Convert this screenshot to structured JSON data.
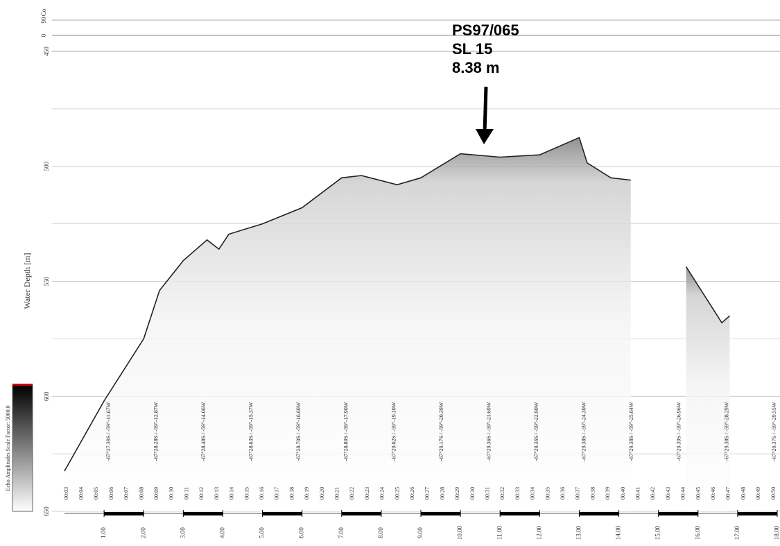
{
  "chart_data": {
    "type": "line",
    "y_label": "Water Depth [m]",
    "colorbar_label": "Echo Amplitudes   Scale Factor: 5000.0",
    "top_panel": {
      "label": "Co",
      "ticks": [
        "90",
        "0"
      ]
    },
    "annotation": [
      "PS97/065",
      "SL 15",
      "8.38 m"
    ],
    "x": [
      0,
      1,
      2,
      2.4,
      3,
      3.6,
      3.9,
      4.15,
      5,
      6,
      7,
      7.5,
      8.4,
      9,
      10,
      11,
      12,
      13,
      13.2,
      13.8,
      14.3,
      14.8,
      15.7,
      16.6,
      16.8
    ],
    "series": [
      {
        "color": "#222222",
        "values": [
          632.5,
          602,
          575,
          554,
          541,
          532,
          536,
          529.5,
          525,
          518,
          505,
          504,
          508,
          505,
          494.5,
          496,
          495,
          487.5,
          498.5,
          505,
          506,
          null,
          543.7,
          568,
          565
        ]
      }
    ],
    "xlim": [
      0,
      18
    ],
    "ylim": [
      450,
      650
    ],
    "xticks": [
      {
        "value": 1,
        "label": "1.00"
      },
      {
        "value": 2,
        "label": "2.00"
      },
      {
        "value": 3,
        "label": "3.00"
      },
      {
        "value": 4,
        "label": "4.00"
      },
      {
        "value": 5,
        "label": "5.00"
      },
      {
        "value": 6,
        "label": "6.00"
      },
      {
        "value": 7,
        "label": "7.00"
      },
      {
        "value": 8,
        "label": "8.00"
      },
      {
        "value": 9,
        "label": "9.00"
      },
      {
        "value": 10,
        "label": "10.00"
      },
      {
        "value": 11,
        "label": "11.00"
      },
      {
        "value": 12,
        "label": "12.00"
      },
      {
        "value": 13,
        "label": "13.00"
      },
      {
        "value": 14,
        "label": "14.00"
      },
      {
        "value": 15,
        "label": "15.00"
      },
      {
        "value": 16,
        "label": "16.00"
      },
      {
        "value": 17,
        "label": "17.00"
      },
      {
        "value": 18,
        "label": "18.00"
      }
    ],
    "yticks": [
      450,
      500,
      550,
      600,
      650
    ],
    "times": [
      "00:03",
      "00:04",
      "00:05",
      "00:06",
      "00:07",
      "00:08",
      "00:09",
      "00:10",
      "00:11",
      "00:12",
      "00:13",
      "00:14",
      "00:15",
      "00:16",
      "00:17",
      "00:18",
      "00:19",
      "00:20",
      "00:21",
      "00:22",
      "00:23",
      "00:24",
      "00:25",
      "00:26",
      "00:27",
      "00:28",
      "00:29",
      "00:30",
      "00:31",
      "00:32",
      "00:33",
      "00:34",
      "00:35",
      "00:36",
      "00:37",
      "00:38",
      "00:39",
      "00:40",
      "00:41",
      "00:42",
      "00:43",
      "00:44",
      "00:45",
      "00:46",
      "00:47",
      "00:48",
      "00:49",
      "00:50"
    ],
    "positions": [
      "-67°27.39S / -59°-11.67W",
      "-67°28.28S / -59°-12.87W",
      "-67°28.48S / -59°-14.06W",
      "-67°28.63S / -59°-15.37W",
      "-67°28.70S / -59°-16.60W",
      "-67°28.89S / -59°-17.90W",
      "-67°29.02S / -59°-19.10W",
      "-67°29.17S / -59°-20.39W",
      "-67°29.36S / -59°-21.69W",
      "-67°29.36S / -59°-22.90W",
      "-67°29.38S / -59°-24.30W",
      "-67°29.38S / -59°-25.64W",
      "-67°29.39S / -59°-26.96W",
      "-67°29.38S / -59°-28.29W",
      "-67°29.37S / -59°-29.55W"
    ]
  }
}
